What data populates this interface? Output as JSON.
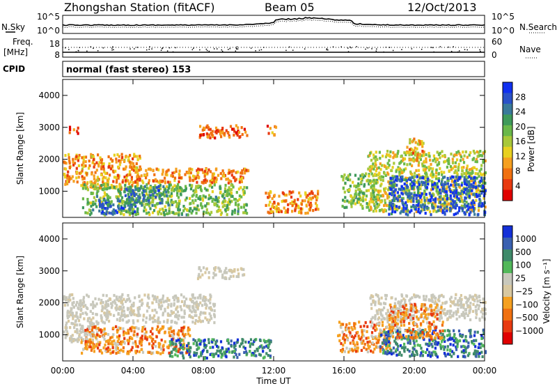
{
  "header": {
    "station": "Zhongshan Station (fitACF)",
    "beam": "Beam 05",
    "date": "12/Oct/2013"
  },
  "noise_panel": {
    "left_label": "N.Sky",
    "left_ticks": [
      "10^5",
      "10^0"
    ],
    "right_ticks": [
      "10^5",
      "10^0"
    ],
    "right_label": "N.Search"
  },
  "freq_panel": {
    "left_label_1": "Freq.",
    "left_label_2": "[MHz]",
    "left_ticks": [
      "18",
      "8"
    ],
    "right_ticks": [
      "60",
      "0"
    ],
    "right_label": "Nave"
  },
  "cpid_panel": {
    "label": "CPID",
    "value": "normal (fast stereo) 153"
  },
  "chart_data": [
    {
      "type": "heatmap",
      "panel": "power",
      "ylabel": "Slant Range [km]",
      "xlabel": "",
      "x_ticks": [
        "00:00",
        "04:00",
        "08:00",
        "12:00",
        "16:00",
        "20:00",
        "00:00"
      ],
      "x_tick_hours": [
        0,
        4,
        8,
        12,
        16,
        20,
        24
      ],
      "y_ticks": [
        1000,
        2000,
        3000,
        4000
      ],
      "xlim": [
        0,
        24
      ],
      "ylim": [
        180,
        4500
      ],
      "colorbar": {
        "label": "Power [dB]",
        "ticks": [
          "4",
          "8",
          "12",
          "16",
          "20",
          "24",
          "28"
        ],
        "range": [
          0,
          30
        ],
        "colors": [
          "#1030f0",
          "#2a52c8",
          "#3a7a9a",
          "#3f9a5a",
          "#6ab84a",
          "#a8c83a",
          "#e8d020",
          "#f5a020",
          "#f07010",
          "#e83a10",
          "#e00000"
        ]
      },
      "blobs": [
        {
          "t0": 0.0,
          "t1": 4.4,
          "r0": 1100,
          "r1": 2200,
          "v": 9
        },
        {
          "t0": 4.4,
          "t1": 10.5,
          "r0": 1300,
          "r1": 1750,
          "v": 8
        },
        {
          "t0": 7.7,
          "t1": 10.5,
          "r0": 2700,
          "r1": 3100,
          "v": 6
        },
        {
          "t0": 0.3,
          "t1": 0.9,
          "r0": 2850,
          "r1": 3050,
          "v": 5
        },
        {
          "t0": 1.1,
          "t1": 10.5,
          "r0": 300,
          "r1": 1250,
          "v": 17
        },
        {
          "t0": 3.5,
          "t1": 6.0,
          "r0": 600,
          "r1": 1200,
          "v": 23
        },
        {
          "t0": 2.0,
          "t1": 4.2,
          "r0": 300,
          "r1": 800,
          "v": 24
        },
        {
          "t0": 11.6,
          "t1": 12.1,
          "r0": 2800,
          "r1": 3100,
          "v": 7
        },
        {
          "t0": 11.5,
          "t1": 14.5,
          "r0": 350,
          "r1": 1050,
          "v": 8
        },
        {
          "t0": 15.8,
          "t1": 17.9,
          "r0": 500,
          "r1": 1600,
          "v": 17
        },
        {
          "t0": 17.3,
          "t1": 24.0,
          "r0": 400,
          "r1": 2300,
          "v": 14
        },
        {
          "t0": 18.5,
          "t1": 24.0,
          "r0": 300,
          "r1": 1500,
          "v": 26
        },
        {
          "t0": 19.5,
          "t1": 20.5,
          "r0": 2000,
          "r1": 2700,
          "v": 10
        }
      ]
    },
    {
      "type": "heatmap",
      "panel": "velocity",
      "ylabel": "Slant Range [km]",
      "xlabel": "Time UT",
      "x_ticks": [
        "00:00",
        "04:00",
        "08:00",
        "12:00",
        "16:00",
        "20:00",
        "00:00"
      ],
      "x_tick_hours": [
        0,
        4,
        8,
        12,
        16,
        20,
        24
      ],
      "y_ticks": [
        1000,
        2000,
        3000,
        4000
      ],
      "xlim": [
        0,
        24
      ],
      "ylim": [
        180,
        4500
      ],
      "colorbar": {
        "label": "Velocity [m s⁻¹]",
        "ticks": [
          "1000",
          "500",
          "100",
          "25",
          "−25",
          "−100",
          "−500",
          "−1000"
        ],
        "colors": [
          "#1430d8",
          "#3a60b0",
          "#3f8a6a",
          "#52b85a",
          "#c8c8bc",
          "#d8c8a0",
          "#f5a020",
          "#f07010",
          "#e83a10",
          "#e00000"
        ]
      },
      "blobs": [
        {
          "t0": 0.0,
          "t1": 8.6,
          "r0": 1400,
          "r1": 2300,
          "c": "gray"
        },
        {
          "t0": 0.0,
          "t1": 2.0,
          "r0": 800,
          "r1": 1400,
          "c": "gray"
        },
        {
          "t0": 1.0,
          "t1": 7.2,
          "r0": 450,
          "r1": 1300,
          "c": "orange"
        },
        {
          "t0": 6.0,
          "t1": 11.8,
          "r0": 300,
          "r1": 900,
          "c": "green"
        },
        {
          "t0": 7.6,
          "t1": 10.3,
          "r0": 2800,
          "r1": 3150,
          "c": "gray"
        },
        {
          "t0": 15.6,
          "t1": 18.6,
          "r0": 500,
          "r1": 1450,
          "c": "orange"
        },
        {
          "t0": 18.0,
          "t1": 24.0,
          "r0": 350,
          "r1": 1200,
          "c": "green"
        },
        {
          "t0": 17.4,
          "t1": 24.0,
          "r0": 1500,
          "r1": 2300,
          "c": "gray"
        },
        {
          "t0": 18.5,
          "t1": 21.6,
          "r0": 900,
          "r1": 2000,
          "c": "orange"
        }
      ]
    }
  ]
}
